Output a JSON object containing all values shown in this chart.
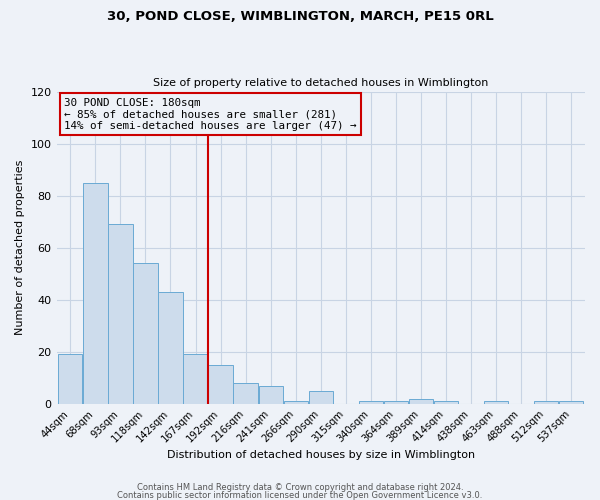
{
  "title": "30, POND CLOSE, WIMBLINGTON, MARCH, PE15 0RL",
  "subtitle": "Size of property relative to detached houses in Wimblington",
  "xlabel": "Distribution of detached houses by size in Wimblington",
  "ylabel": "Number of detached properties",
  "footnote1": "Contains HM Land Registry data © Crown copyright and database right 2024.",
  "footnote2": "Contains public sector information licensed under the Open Government Licence v3.0.",
  "bar_labels": [
    "44sqm",
    "68sqm",
    "93sqm",
    "118sqm",
    "142sqm",
    "167sqm",
    "192sqm",
    "216sqm",
    "241sqm",
    "266sqm",
    "290sqm",
    "315sqm",
    "340sqm",
    "364sqm",
    "389sqm",
    "414sqm",
    "438sqm",
    "463sqm",
    "488sqm",
    "512sqm",
    "537sqm"
  ],
  "bar_heights": [
    19,
    85,
    69,
    54,
    43,
    19,
    15,
    8,
    7,
    1,
    5,
    0,
    1,
    1,
    2,
    1,
    0,
    1,
    0,
    1,
    1
  ],
  "bar_color": "#cddcec",
  "bar_edge_color": "#6aaad4",
  "vline_x_index": 6,
  "vline_color": "#cc0000",
  "annotation_title": "30 POND CLOSE: 180sqm",
  "annotation_line1": "← 85% of detached houses are smaller (281)",
  "annotation_line2": "14% of semi-detached houses are larger (47) →",
  "annotation_box_edge_color": "#cc0000",
  "ylim": [
    0,
    120
  ],
  "yticks": [
    0,
    20,
    40,
    60,
    80,
    100,
    120
  ],
  "grid_color": "#c8d4e4",
  "background_color": "#eef2f8"
}
